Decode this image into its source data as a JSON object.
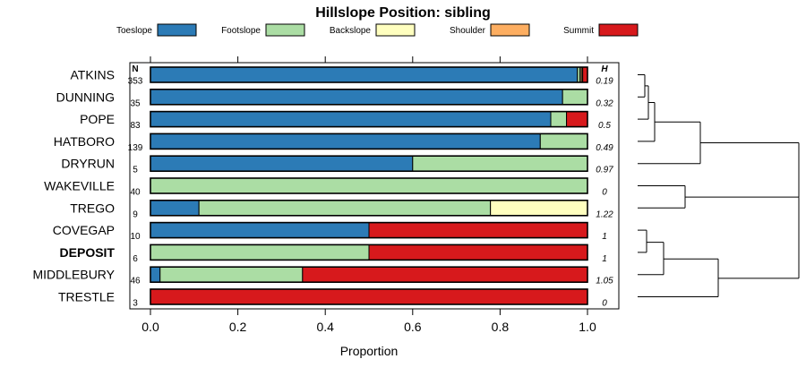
{
  "chart_data": {
    "type": "bar",
    "orientation": "horizontal",
    "stacked": true,
    "title": "Hillslope Position: sibling",
    "xlabel": "Proportion",
    "xlim": [
      0,
      1
    ],
    "x_ticks": [
      "0.0",
      "0.2",
      "0.4",
      "0.6",
      "0.8",
      "1.0"
    ],
    "n_header": "N",
    "h_header": "H",
    "categories": [
      "ATKINS",
      "DUNNING",
      "POPE",
      "HATBORO",
      "DRYRUN",
      "WAKEVILLE",
      "TREGO",
      "COVEGAP",
      "DEPOSIT",
      "MIDDLEBURY",
      "TRESTLE"
    ],
    "highlighted_category": "DEPOSIT",
    "n": [
      "353",
      "35",
      "83",
      "139",
      "5",
      "40",
      "9",
      "10",
      "6",
      "46",
      "3"
    ],
    "h": [
      "0.19",
      "0.32",
      "0.5",
      "0.49",
      "0.97",
      "0",
      "1.22",
      "1",
      "1",
      "1.05",
      "0"
    ],
    "series": [
      {
        "name": "Toeslope",
        "color": "#2c7bb6",
        "values": [
          0.977,
          0.943,
          0.916,
          0.892,
          0.6,
          0,
          0.111,
          0.5,
          0,
          0.022,
          0
        ]
      },
      {
        "name": "Footslope",
        "color": "#abdda4",
        "values": [
          0.006,
          0.057,
          0.036,
          0.108,
          0.4,
          1.0,
          0.667,
          0,
          0.5,
          0.326,
          0
        ]
      },
      {
        "name": "Backslope",
        "color": "#ffffbf",
        "values": [
          0.003,
          0,
          0,
          0,
          0,
          0,
          0.222,
          0,
          0,
          0,
          0
        ]
      },
      {
        "name": "Shoulder",
        "color": "#fdae61",
        "values": [
          0.003,
          0,
          0,
          0,
          0,
          0,
          0,
          0,
          0,
          0,
          0
        ]
      },
      {
        "name": "Summit",
        "color": "#d7191c",
        "values": [
          0.011,
          0,
          0.048,
          0,
          0,
          0,
          0,
          0.5,
          0.5,
          0.652,
          1.0
        ]
      }
    ],
    "legend_position": "top",
    "grid": false,
    "dendrogram": true
  }
}
